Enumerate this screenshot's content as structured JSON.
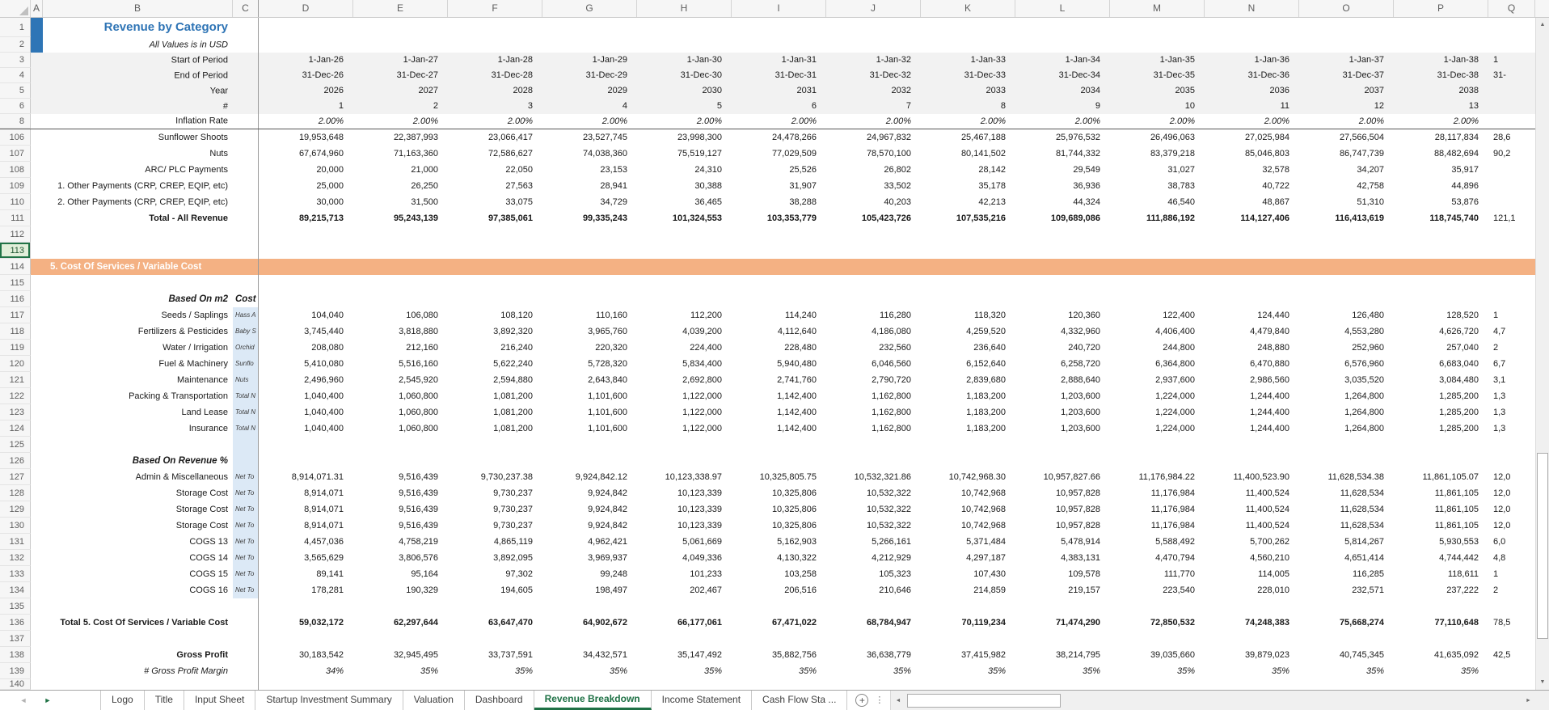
{
  "colors": {
    "accent_green": "#217346",
    "title_blue": "#2E74B5",
    "banner_orange": "#F4B183",
    "note_blue": "#DCE9F6",
    "header_band_gray": "#F2F2F2"
  },
  "icons": {
    "select-all": "",
    "scroll-up": "▲",
    "scroll-down": "▼",
    "scroll-left": "◄",
    "scroll-right": "►",
    "tab-prev": "◄",
    "tab-next": "►",
    "add-sheet": "+",
    "tab-more": "⋮"
  },
  "columns": {
    "letters": [
      "A",
      "B",
      "C",
      "D",
      "E",
      "F",
      "G",
      "H",
      "I",
      "J",
      "K",
      "L",
      "M",
      "N",
      "O",
      "P",
      "Q"
    ]
  },
  "rows": [
    {
      "num": "1",
      "type": "title",
      "b": "Revenue by Category"
    },
    {
      "num": "2",
      "type": "subtitle",
      "b": "All Values is in USD"
    },
    {
      "num": "3",
      "type": "gray",
      "b": "Start of Period",
      "q": "1",
      "values": [
        "1-Jan-26",
        "1-Jan-27",
        "1-Jan-28",
        "1-Jan-29",
        "1-Jan-30",
        "1-Jan-31",
        "1-Jan-32",
        "1-Jan-33",
        "1-Jan-34",
        "1-Jan-35",
        "1-Jan-36",
        "1-Jan-37",
        "1-Jan-38"
      ]
    },
    {
      "num": "4",
      "type": "gray",
      "b": "End of Period",
      "q": "31-",
      "values": [
        "31-Dec-26",
        "31-Dec-27",
        "31-Dec-28",
        "31-Dec-29",
        "31-Dec-30",
        "31-Dec-31",
        "31-Dec-32",
        "31-Dec-33",
        "31-Dec-34",
        "31-Dec-35",
        "31-Dec-36",
        "31-Dec-37",
        "31-Dec-38"
      ]
    },
    {
      "num": "5",
      "type": "gray",
      "b": "Year",
      "values": [
        "2026",
        "2027",
        "2028",
        "2029",
        "2030",
        "2031",
        "2032",
        "2033",
        "2034",
        "2035",
        "2036",
        "2037",
        "2038"
      ]
    },
    {
      "num": "6",
      "type": "gray",
      "b": "#",
      "values": [
        "1",
        "2",
        "3",
        "4",
        "5",
        "6",
        "7",
        "8",
        "9",
        "10",
        "11",
        "12",
        "13"
      ]
    },
    {
      "num": "8",
      "type": "inflation",
      "b": "Inflation Rate",
      "values": [
        "2.00%",
        "2.00%",
        "2.00%",
        "2.00%",
        "2.00%",
        "2.00%",
        "2.00%",
        "2.00%",
        "2.00%",
        "2.00%",
        "2.00%",
        "2.00%",
        "2.00%"
      ]
    },
    {
      "num": "106",
      "type": "data",
      "b": "Sunflower Shoots",
      "q": "28,6",
      "values": [
        "19,953,648",
        "22,387,993",
        "23,066,417",
        "23,527,745",
        "23,998,300",
        "24,478,266",
        "24,967,832",
        "25,467,188",
        "25,976,532",
        "26,496,063",
        "27,025,984",
        "27,566,504",
        "28,117,834"
      ]
    },
    {
      "num": "107",
      "type": "data",
      "b": "Nuts",
      "q": "90,2",
      "values": [
        "67,674,960",
        "71,163,360",
        "72,586,627",
        "74,038,360",
        "75,519,127",
        "77,029,509",
        "78,570,100",
        "80,141,502",
        "81,744,332",
        "83,379,218",
        "85,046,803",
        "86,747,739",
        "88,482,694"
      ]
    },
    {
      "num": "108",
      "type": "data",
      "b": "ARC/ PLC Payments",
      "values": [
        "20,000",
        "21,000",
        "22,050",
        "23,153",
        "24,310",
        "25,526",
        "26,802",
        "28,142",
        "29,549",
        "31,027",
        "32,578",
        "34,207",
        "35,917"
      ]
    },
    {
      "num": "109",
      "type": "data",
      "b": "1. Other Payments (CRP, CREP, EQIP, etc)",
      "values": [
        "25,000",
        "26,250",
        "27,563",
        "28,941",
        "30,388",
        "31,907",
        "33,502",
        "35,178",
        "36,936",
        "38,783",
        "40,722",
        "42,758",
        "44,896"
      ]
    },
    {
      "num": "110",
      "type": "data",
      "b": "2. Other Payments (CRP, CREP, EQIP, etc)",
      "values": [
        "30,000",
        "31,500",
        "33,075",
        "34,729",
        "36,465",
        "38,288",
        "40,203",
        "42,213",
        "44,324",
        "46,540",
        "48,867",
        "51,310",
        "53,876"
      ]
    },
    {
      "num": "111",
      "type": "total",
      "b": "Total - All Revenue",
      "q": "121,1",
      "values": [
        "89,215,713",
        "95,243,139",
        "97,385,061",
        "99,335,243",
        "101,324,553",
        "103,353,779",
        "105,423,726",
        "107,535,216",
        "109,689,086",
        "111,886,192",
        "114,127,406",
        "116,413,619",
        "118,745,740"
      ]
    },
    {
      "num": "112",
      "type": "blank"
    },
    {
      "num": "113",
      "type": "blank",
      "selected": true
    },
    {
      "num": "114",
      "type": "banner",
      "b": "5. Cost Of Services / Variable Cost"
    },
    {
      "num": "115",
      "type": "blank"
    },
    {
      "num": "116",
      "type": "section",
      "b": "Based On m2",
      "c": "Cost Related to"
    },
    {
      "num": "117",
      "type": "data",
      "b": "Seeds / Saplings",
      "note": "Hass A",
      "q": "1",
      "values": [
        "104,040",
        "106,080",
        "108,120",
        "110,160",
        "112,200",
        "114,240",
        "116,280",
        "118,320",
        "120,360",
        "122,400",
        "124,440",
        "126,480",
        "128,520"
      ]
    },
    {
      "num": "118",
      "type": "data",
      "b": "Fertilizers & Pesticides",
      "note": "Baby S",
      "q": "4,7",
      "values": [
        "3,745,440",
        "3,818,880",
        "3,892,320",
        "3,965,760",
        "4,039,200",
        "4,112,640",
        "4,186,080",
        "4,259,520",
        "4,332,960",
        "4,406,400",
        "4,479,840",
        "4,553,280",
        "4,626,720"
      ]
    },
    {
      "num": "119",
      "type": "data",
      "b": "Water / Irrigation",
      "note": "Orchid",
      "q": "2",
      "values": [
        "208,080",
        "212,160",
        "216,240",
        "220,320",
        "224,400",
        "228,480",
        "232,560",
        "236,640",
        "240,720",
        "244,800",
        "248,880",
        "252,960",
        "257,040"
      ]
    },
    {
      "num": "120",
      "type": "data",
      "b": "Fuel & Machinery",
      "note": "Sunflo",
      "q": "6,7",
      "values": [
        "5,410,080",
        "5,516,160",
        "5,622,240",
        "5,728,320",
        "5,834,400",
        "5,940,480",
        "6,046,560",
        "6,152,640",
        "6,258,720",
        "6,364,800",
        "6,470,880",
        "6,576,960",
        "6,683,040"
      ]
    },
    {
      "num": "121",
      "type": "data",
      "b": "Maintenance",
      "note": "Nuts",
      "q": "3,1",
      "values": [
        "2,496,960",
        "2,545,920",
        "2,594,880",
        "2,643,840",
        "2,692,800",
        "2,741,760",
        "2,790,720",
        "2,839,680",
        "2,888,640",
        "2,937,600",
        "2,986,560",
        "3,035,520",
        "3,084,480"
      ]
    },
    {
      "num": "122",
      "type": "data",
      "b": "Packing & Transportation",
      "note": "Total N",
      "q": "1,3",
      "values": [
        "1,040,400",
        "1,060,800",
        "1,081,200",
        "1,101,600",
        "1,122,000",
        "1,142,400",
        "1,162,800",
        "1,183,200",
        "1,203,600",
        "1,224,000",
        "1,244,400",
        "1,264,800",
        "1,285,200"
      ]
    },
    {
      "num": "123",
      "type": "data",
      "b": "Land Lease",
      "note": "Total N",
      "q": "1,3",
      "values": [
        "1,040,400",
        "1,060,800",
        "1,081,200",
        "1,101,600",
        "1,122,000",
        "1,142,400",
        "1,162,800",
        "1,183,200",
        "1,203,600",
        "1,224,000",
        "1,244,400",
        "1,264,800",
        "1,285,200"
      ]
    },
    {
      "num": "124",
      "type": "data",
      "b": "Insurance",
      "note": "Total N",
      "q": "1,3",
      "values": [
        "1,040,400",
        "1,060,800",
        "1,081,200",
        "1,101,600",
        "1,122,000",
        "1,142,400",
        "1,162,800",
        "1,183,200",
        "1,203,600",
        "1,224,000",
        "1,244,400",
        "1,264,800",
        "1,285,200"
      ]
    },
    {
      "num": "125",
      "type": "blank",
      "note": ""
    },
    {
      "num": "126",
      "type": "section",
      "b": "Based On Revenue %",
      "note": ""
    },
    {
      "num": "127",
      "type": "data",
      "b": "Admin & Miscellaneous",
      "note": "Net To",
      "q": "12,0",
      "values": [
        "8,914,071.31",
        "9,516,439",
        "9,730,237.38",
        "9,924,842.12",
        "10,123,338.97",
        "10,325,805.75",
        "10,532,321.86",
        "10,742,968.30",
        "10,957,827.66",
        "11,176,984.22",
        "11,400,523.90",
        "11,628,534.38",
        "11,861,105.07"
      ]
    },
    {
      "num": "128",
      "type": "data",
      "b": "Storage Cost",
      "note": "Net To",
      "q": "12,0",
      "values": [
        "8,914,071",
        "9,516,439",
        "9,730,237",
        "9,924,842",
        "10,123,339",
        "10,325,806",
        "10,532,322",
        "10,742,968",
        "10,957,828",
        "11,176,984",
        "11,400,524",
        "11,628,534",
        "11,861,105"
      ]
    },
    {
      "num": "129",
      "type": "data",
      "b": "Storage Cost",
      "note": "Net To",
      "q": "12,0",
      "values": [
        "8,914,071",
        "9,516,439",
        "9,730,237",
        "9,924,842",
        "10,123,339",
        "10,325,806",
        "10,532,322",
        "10,742,968",
        "10,957,828",
        "11,176,984",
        "11,400,524",
        "11,628,534",
        "11,861,105"
      ]
    },
    {
      "num": "130",
      "type": "data",
      "b": "Storage Cost",
      "note": "Net To",
      "q": "12,0",
      "values": [
        "8,914,071",
        "9,516,439",
        "9,730,237",
        "9,924,842",
        "10,123,339",
        "10,325,806",
        "10,532,322",
        "10,742,968",
        "10,957,828",
        "11,176,984",
        "11,400,524",
        "11,628,534",
        "11,861,105"
      ]
    },
    {
      "num": "131",
      "type": "data",
      "b": "COGS 13",
      "note": "Net To",
      "q": "6,0",
      "values": [
        "4,457,036",
        "4,758,219",
        "4,865,119",
        "4,962,421",
        "5,061,669",
        "5,162,903",
        "5,266,161",
        "5,371,484",
        "5,478,914",
        "5,588,492",
        "5,700,262",
        "5,814,267",
        "5,930,553"
      ]
    },
    {
      "num": "132",
      "type": "data",
      "b": "COGS 14",
      "note": "Net To",
      "q": "4,8",
      "values": [
        "3,565,629",
        "3,806,576",
        "3,892,095",
        "3,969,937",
        "4,049,336",
        "4,130,322",
        "4,212,929",
        "4,297,187",
        "4,383,131",
        "4,470,794",
        "4,560,210",
        "4,651,414",
        "4,744,442"
      ]
    },
    {
      "num": "133",
      "type": "data",
      "b": "COGS 15",
      "note": "Net To",
      "q": "1",
      "values": [
        "89,141",
        "95,164",
        "97,302",
        "99,248",
        "101,233",
        "103,258",
        "105,323",
        "107,430",
        "109,578",
        "111,770",
        "114,005",
        "116,285",
        "118,611"
      ]
    },
    {
      "num": "134",
      "type": "data",
      "b": "COGS 16",
      "note": "Net To",
      "q": "2",
      "values": [
        "178,281",
        "190,329",
        "194,605",
        "198,497",
        "202,467",
        "206,516",
        "210,646",
        "214,859",
        "219,157",
        "223,540",
        "228,010",
        "232,571",
        "237,222"
      ]
    },
    {
      "num": "135",
      "type": "blank"
    },
    {
      "num": "136",
      "type": "total",
      "b": "Total 5. Cost Of Services / Variable Cost",
      "q": "78,5",
      "values": [
        "59,032,172",
        "62,297,644",
        "63,647,470",
        "64,902,672",
        "66,177,061",
        "67,471,022",
        "68,784,947",
        "70,119,234",
        "71,474,290",
        "72,850,532",
        "74,248,383",
        "75,668,274",
        "77,110,648"
      ]
    },
    {
      "num": "137",
      "type": "blank"
    },
    {
      "num": "138",
      "type": "gross",
      "b": "Gross Profit",
      "q": "42,5",
      "values": [
        "30,183,542",
        "32,945,495",
        "33,737,591",
        "34,432,571",
        "35,147,492",
        "35,882,756",
        "36,638,779",
        "37,415,982",
        "38,214,795",
        "39,035,660",
        "39,879,023",
        "40,745,345",
        "41,635,092"
      ]
    },
    {
      "num": "139",
      "type": "margin",
      "b": "# Gross Profit Margin",
      "values": [
        "34%",
        "35%",
        "35%",
        "35%",
        "35%",
        "35%",
        "35%",
        "35%",
        "35%",
        "35%",
        "35%",
        "35%",
        "35%"
      ]
    },
    {
      "num": "140",
      "type": "partial"
    }
  ],
  "tabs": {
    "items": [
      "Logo",
      "Title",
      "Input Sheet",
      "Startup Investment Summary",
      "Valuation",
      "Dashboard",
      "Revenue Breakdown",
      "Income Statement",
      "Cash Flow Sta ..."
    ],
    "active": "Revenue Breakdown"
  }
}
